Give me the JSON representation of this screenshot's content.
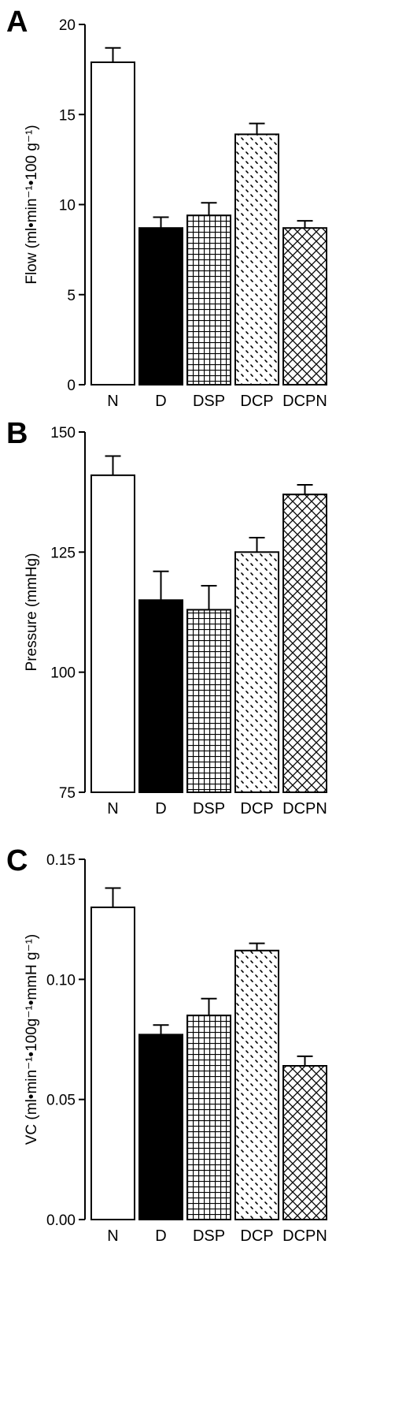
{
  "chart_data": [
    {
      "type": "bar",
      "panel_label": "A",
      "categories": [
        "N",
        "D",
        "DSP",
        "DCP",
        "DCPN"
      ],
      "values": [
        17.9,
        8.7,
        9.4,
        13.9,
        8.7
      ],
      "errors": [
        0.8,
        0.6,
        0.7,
        0.6,
        0.4
      ],
      "patterns": [
        "open",
        "solid",
        "grid",
        "dots",
        "crosshatch"
      ],
      "ylabel": "Flow (ml•min⁻¹•100 g⁻¹)",
      "ylim": [
        0,
        20
      ],
      "yticks": [
        0,
        5,
        10,
        15,
        20
      ],
      "ytick_labels": [
        "0",
        "5",
        "10",
        "15",
        "20"
      ]
    },
    {
      "type": "bar",
      "panel_label": "B",
      "categories": [
        "N",
        "D",
        "DSP",
        "DCP",
        "DCPN"
      ],
      "values": [
        141,
        115,
        113,
        125,
        137
      ],
      "errors": [
        4,
        6,
        5,
        3,
        2
      ],
      "patterns": [
        "open",
        "solid",
        "grid",
        "dots",
        "crosshatch"
      ],
      "ylabel": "Pressure (mmHg)",
      "ylim": [
        75,
        150
      ],
      "yticks": [
        75,
        100,
        125,
        150
      ],
      "ytick_labels": [
        "75",
        "100",
        "125",
        "150"
      ]
    },
    {
      "type": "bar",
      "panel_label": "C",
      "categories": [
        "N",
        "D",
        "DSP",
        "DCP",
        "DCPN"
      ],
      "values": [
        0.13,
        0.077,
        0.085,
        0.112,
        0.064
      ],
      "errors": [
        0.008,
        0.004,
        0.007,
        0.003,
        0.004
      ],
      "patterns": [
        "open",
        "solid",
        "grid",
        "dots",
        "crosshatch"
      ],
      "ylabel": "VC (ml•min⁻¹•100g⁻¹•mmH g⁻¹)",
      "ylim": [
        0,
        0.15
      ],
      "yticks": [
        0,
        0.05,
        0.1,
        0.15
      ],
      "ytick_labels": [
        "0.00",
        "0.05",
        "0.10",
        "0.15"
      ]
    }
  ],
  "colors": {
    "ink": "#000000",
    "bar_fill": "#ffffff",
    "solid_fill": "#000000"
  }
}
